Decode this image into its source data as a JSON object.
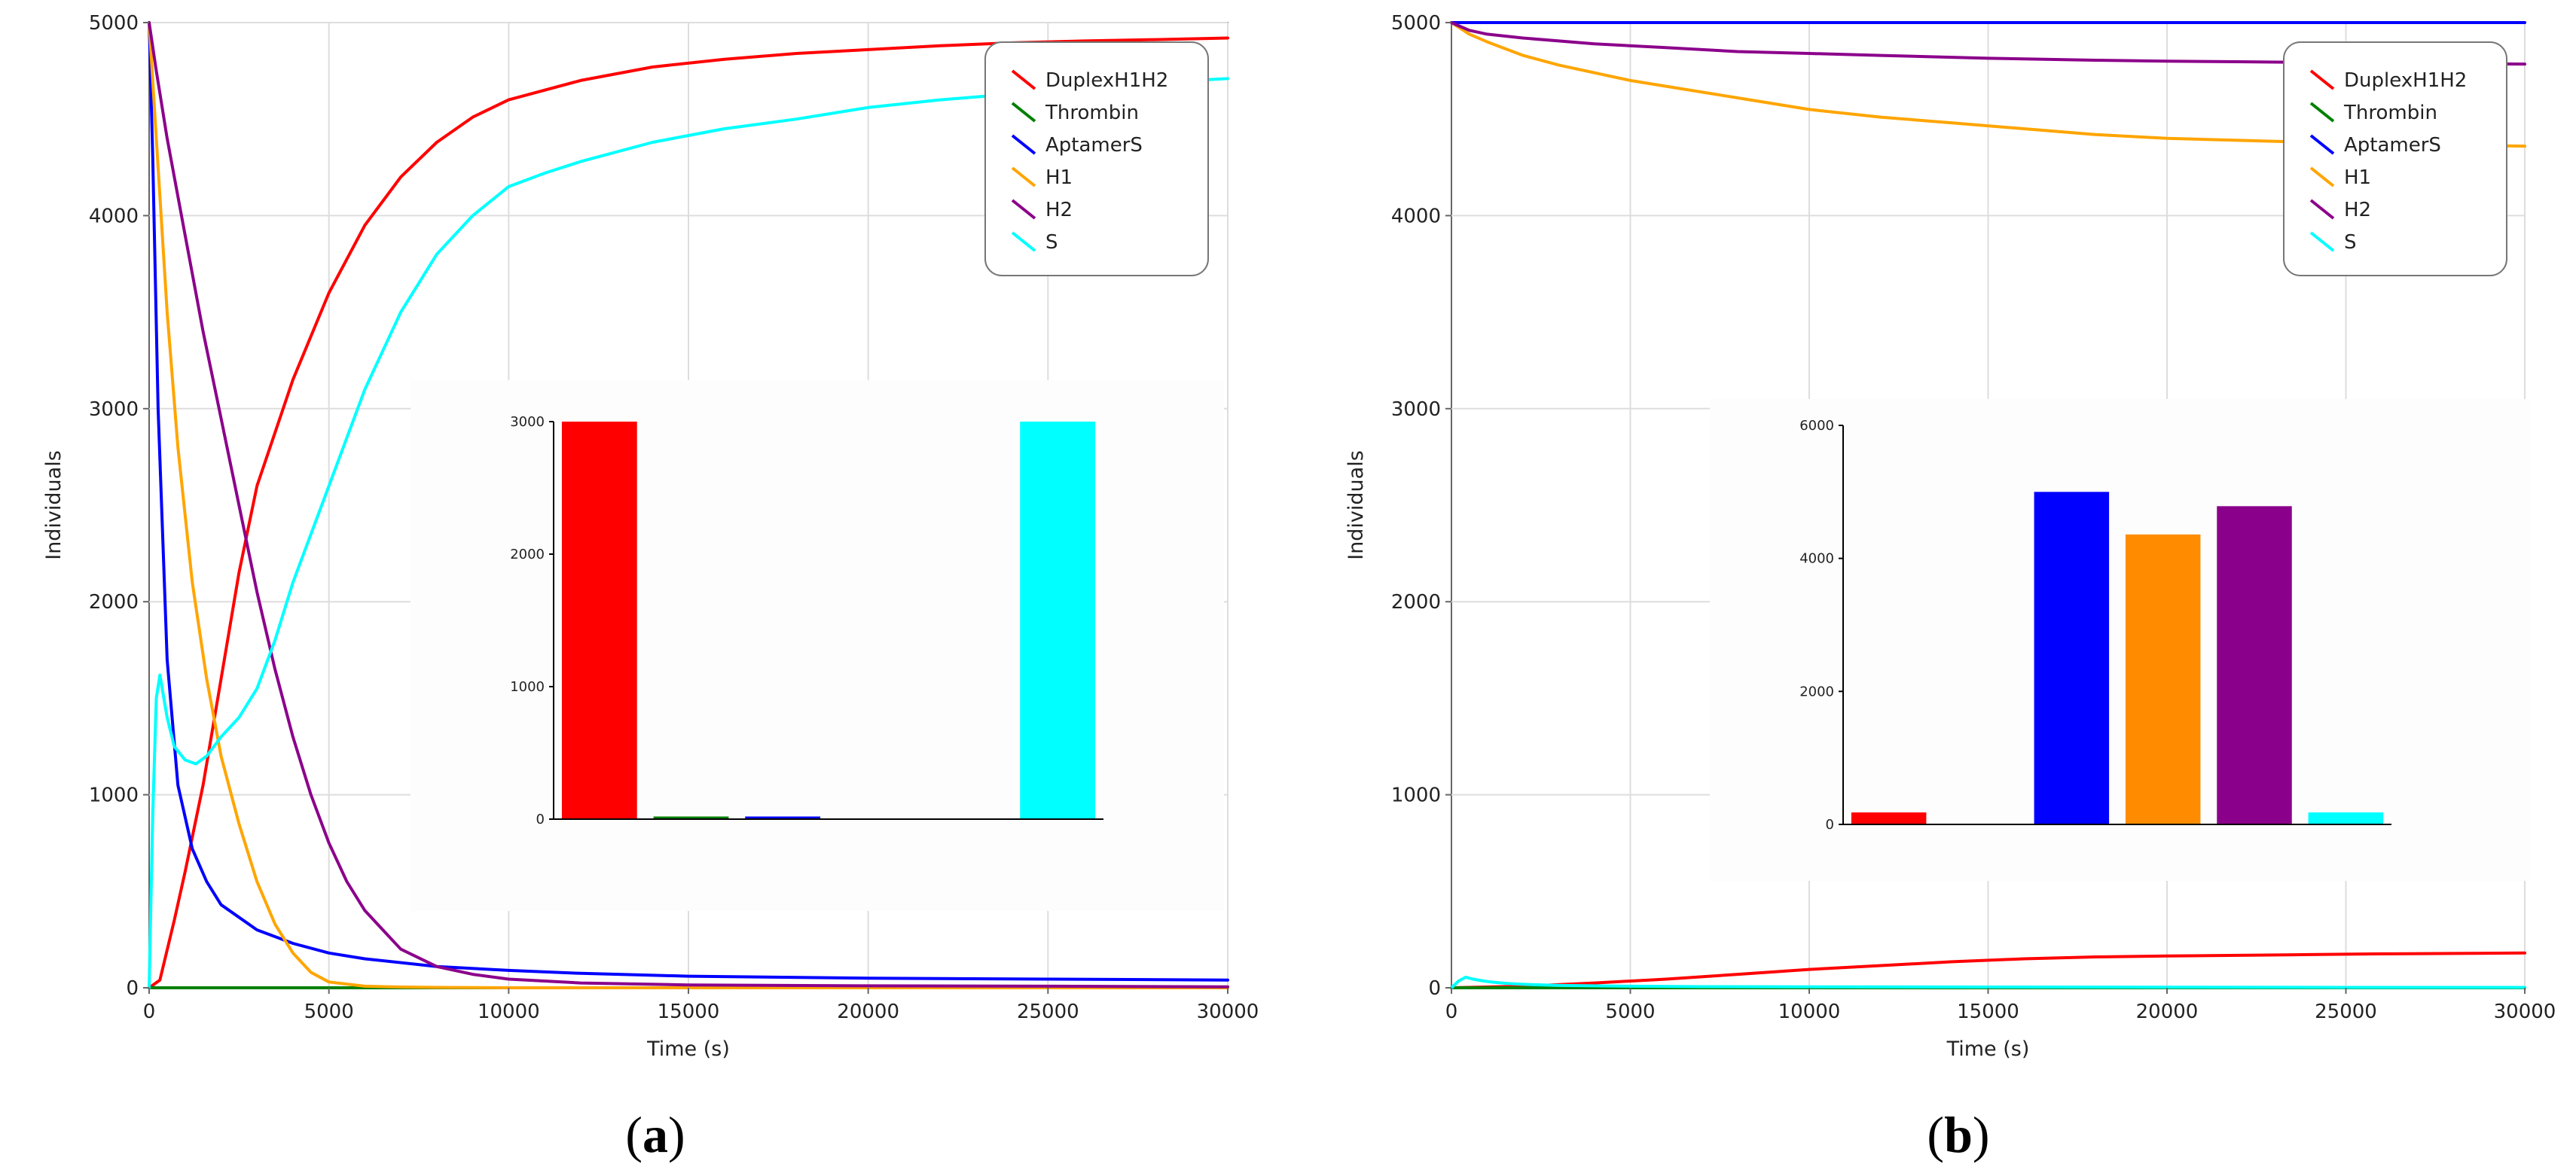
{
  "chart_data": [
    {
      "panel": "a",
      "type": "line",
      "title": "",
      "caption": "(a)",
      "xlabel": "Time (s)",
      "ylabel": "Individuals",
      "xlim": [
        0,
        30000
      ],
      "ylim": [
        0,
        5000
      ],
      "xticks": [
        0,
        5000,
        10000,
        15000,
        20000,
        25000,
        30000
      ],
      "yticks": [
        0,
        1000,
        2000,
        3000,
        4000,
        5000
      ],
      "grid": true,
      "legend_position": "top-right",
      "series": [
        {
          "name": "DuplexH1H2",
          "color": "#ff0000",
          "x": [
            0,
            300,
            700,
            1000,
            1500,
            2000,
            2500,
            3000,
            4000,
            5000,
            6000,
            7000,
            8000,
            9000,
            10000,
            12000,
            14000,
            16000,
            18000,
            20000,
            22000,
            24000,
            26000,
            28000,
            30000
          ],
          "y": [
            0,
            40,
            350,
            600,
            1050,
            1600,
            2150,
            2600,
            3150,
            3600,
            3950,
            4200,
            4380,
            4510,
            4600,
            4700,
            4770,
            4810,
            4840,
            4860,
            4880,
            4895,
            4905,
            4912,
            4920
          ]
        },
        {
          "name": "Thrombin",
          "color": "#008000",
          "x": [
            0,
            30000
          ],
          "y": [
            0,
            0
          ]
        },
        {
          "name": "AptamerS",
          "color": "#0000ff",
          "x": [
            0,
            100,
            250,
            500,
            800,
            1200,
            1600,
            2000,
            3000,
            4000,
            5000,
            6000,
            8000,
            10000,
            12000,
            15000,
            20000,
            25000,
            30000
          ],
          "y": [
            5000,
            4300,
            3000,
            1700,
            1050,
            720,
            550,
            430,
            300,
            230,
            180,
            150,
            110,
            90,
            75,
            60,
            50,
            45,
            40
          ]
        },
        {
          "name": "H1",
          "color": "#ffa500",
          "x": [
            0,
            200,
            500,
            800,
            1200,
            1600,
            2000,
            2500,
            3000,
            3500,
            4000,
            4500,
            5000,
            6000,
            7000,
            8000,
            10000,
            15000,
            20000,
            25000,
            30000
          ],
          "y": [
            5000,
            4400,
            3500,
            2800,
            2100,
            1600,
            1200,
            850,
            550,
            330,
            180,
            80,
            30,
            8,
            4,
            2,
            0,
            0,
            0,
            0,
            0
          ]
        },
        {
          "name": "H2",
          "color": "#8b008b",
          "x": [
            0,
            200,
            500,
            1000,
            1500,
            2000,
            2500,
            3000,
            3500,
            4000,
            4500,
            5000,
            5500,
            6000,
            6500,
            7000,
            8000,
            9000,
            10000,
            12000,
            15000,
            20000,
            25000,
            30000
          ],
          "y": [
            5000,
            4750,
            4400,
            3900,
            3400,
            2950,
            2500,
            2050,
            1650,
            1300,
            1000,
            750,
            550,
            400,
            300,
            200,
            110,
            70,
            45,
            25,
            15,
            10,
            8,
            5
          ]
        },
        {
          "name": "S",
          "color": "#00ffff",
          "x": [
            0,
            100,
            200,
            300,
            500,
            700,
            1000,
            1300,
            1600,
            2000,
            2500,
            3000,
            3500,
            4000,
            5000,
            6000,
            7000,
            8000,
            9000,
            10000,
            11000,
            12000,
            14000,
            16000,
            18000,
            20000,
            22000,
            24000,
            26000,
            28000,
            30000
          ],
          "y": [
            0,
            900,
            1500,
            1620,
            1400,
            1250,
            1180,
            1160,
            1200,
            1300,
            1400,
            1550,
            1800,
            2100,
            2600,
            3100,
            3500,
            3800,
            4000,
            4150,
            4220,
            4280,
            4380,
            4450,
            4500,
            4560,
            4600,
            4630,
            4660,
            4690,
            4710
          ]
        }
      ],
      "inset": {
        "type": "bar",
        "ylim": [
          0,
          3000
        ],
        "yticks": [
          0,
          1000,
          2000,
          3000
        ],
        "categories": [
          "DuplexH1H2",
          "Thrombin",
          "AptamerS",
          "H1",
          "H2",
          "S"
        ],
        "values": [
          3000,
          20,
          20,
          0,
          0,
          3000
        ],
        "colors": [
          "#ff0000",
          "#008000",
          "#0000ff",
          "#ffa500",
          "#8b008b",
          "#00ffff"
        ]
      }
    },
    {
      "panel": "b",
      "type": "line",
      "title": "",
      "caption": "(b)",
      "xlabel": "Time (s)",
      "ylabel": "Individuals",
      "xlim": [
        0,
        30000
      ],
      "ylim": [
        0,
        5000
      ],
      "xticks": [
        0,
        5000,
        10000,
        15000,
        20000,
        25000,
        30000
      ],
      "yticks": [
        0,
        1000,
        2000,
        3000,
        4000,
        5000
      ],
      "grid": true,
      "legend_position": "top-right",
      "series": [
        {
          "name": "DuplexH1H2",
          "color": "#ff0000",
          "x": [
            0,
            2000,
            4000,
            6000,
            8000,
            10000,
            12000,
            14000,
            16000,
            18000,
            20000,
            22000,
            24000,
            26000,
            28000,
            30000
          ],
          "y": [
            0,
            8,
            25,
            45,
            70,
            95,
            115,
            135,
            150,
            160,
            165,
            168,
            172,
            176,
            178,
            180
          ]
        },
        {
          "name": "Thrombin",
          "color": "#008000",
          "x": [
            0,
            30000
          ],
          "y": [
            0,
            0
          ]
        },
        {
          "name": "AptamerS",
          "color": "#0000ff",
          "x": [
            0,
            30000
          ],
          "y": [
            5000,
            5000
          ]
        },
        {
          "name": "H1",
          "color": "#ffa500",
          "x": [
            0,
            500,
            1000,
            2000,
            3000,
            4000,
            5000,
            6000,
            8000,
            10000,
            12000,
            14000,
            16000,
            18000,
            20000,
            22000,
            24000,
            26000,
            28000,
            30000
          ],
          "y": [
            5000,
            4940,
            4900,
            4830,
            4780,
            4740,
            4700,
            4670,
            4610,
            4550,
            4510,
            4480,
            4450,
            4420,
            4400,
            4390,
            4380,
            4370,
            4365,
            4360
          ]
        },
        {
          "name": "H2",
          "color": "#8b008b",
          "x": [
            0,
            500,
            1000,
            2000,
            4000,
            6000,
            8000,
            10000,
            12000,
            15000,
            18000,
            20000,
            22000,
            25000,
            28000,
            30000
          ],
          "y": [
            5000,
            4960,
            4940,
            4920,
            4890,
            4870,
            4850,
            4840,
            4830,
            4815,
            4805,
            4800,
            4797,
            4792,
            4788,
            4785
          ]
        },
        {
          "name": "S",
          "color": "#00ffff",
          "x": [
            0,
            200,
            400,
            600,
            900,
            1200,
            1600,
            2000,
            3000,
            4000,
            5000,
            7000,
            10000,
            15000,
            20000,
            25000,
            30000
          ],
          "y": [
            0,
            35,
            55,
            45,
            35,
            28,
            22,
            18,
            12,
            10,
            8,
            6,
            5,
            4,
            3,
            2,
            2
          ]
        }
      ],
      "inset": {
        "type": "bar",
        "ylim": [
          0,
          6000
        ],
        "yticks": [
          0,
          2000,
          4000,
          6000
        ],
        "categories": [
          "DuplexH1H2",
          "Thrombin",
          "AptamerS",
          "H1",
          "H2",
          "S"
        ],
        "values": [
          180,
          0,
          5000,
          4360,
          4785,
          180
        ],
        "colors": [
          "#ff0000",
          "#008000",
          "#0000ff",
          "#ff8c00",
          "#8b008b",
          "#00ffff"
        ]
      }
    }
  ]
}
